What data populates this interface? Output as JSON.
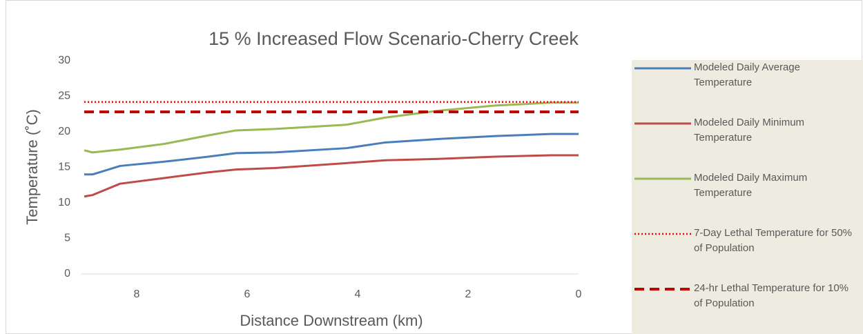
{
  "chart_data": {
    "type": "line",
    "title": "15 % Increased Flow Scenario-Cherry Creek",
    "x_label": "Distance Downstream (km)",
    "y_label": "Temperature (˚C)",
    "x": [
      8.95,
      8.8,
      8.3,
      7.5,
      6.7,
      6.2,
      5.5,
      4.2,
      3.5,
      2.5,
      1.5,
      0.5,
      0
    ],
    "xlim": [
      9,
      0
    ],
    "xticks": [
      8,
      6,
      4,
      2,
      0
    ],
    "ylim": [
      0,
      30
    ],
    "yticks": [
      0,
      5,
      10,
      15,
      20,
      25,
      30
    ],
    "legend": "right",
    "series": [
      {
        "name": "Modeled Daily Average Temperature",
        "color": "#4a7ebb",
        "dash": "solid",
        "values": [
          14,
          14,
          15.2,
          15.8,
          16.5,
          17,
          17.1,
          17.7,
          18.5,
          19,
          19.4,
          19.7,
          19.7
        ]
      },
      {
        "name": "Modeled Daily Minimum Temperature",
        "color": "#be4b48",
        "dash": "solid",
        "values": [
          10.9,
          11.1,
          12.7,
          13.5,
          14.3,
          14.7,
          14.9,
          15.6,
          16,
          16.2,
          16.5,
          16.7,
          16.7
        ]
      },
      {
        "name": "Modeled Daily Maximum Temperature",
        "color": "#98b954",
        "dash": "solid",
        "values": [
          17.4,
          17.1,
          17.5,
          18.3,
          19.5,
          20.2,
          20.4,
          21,
          22,
          23,
          23.7,
          24.1,
          24.1
        ]
      },
      {
        "name": "7-Day Lethal Temperature for 50% of Population",
        "color": "#ff0000",
        "dash": "dotted",
        "values": [
          24.2,
          24.2,
          24.2,
          24.2,
          24.2,
          24.2,
          24.2,
          24.2,
          24.2,
          24.2,
          24.2,
          24.2,
          24.2
        ]
      },
      {
        "name": "24-hr Lethal Temperature for 10% of Population",
        "color": "#c00000",
        "dash": "dashed",
        "values": [
          22.8,
          22.8,
          22.8,
          22.8,
          22.8,
          22.8,
          22.8,
          22.8,
          22.8,
          22.8,
          22.8,
          22.8,
          22.8
        ]
      }
    ]
  }
}
